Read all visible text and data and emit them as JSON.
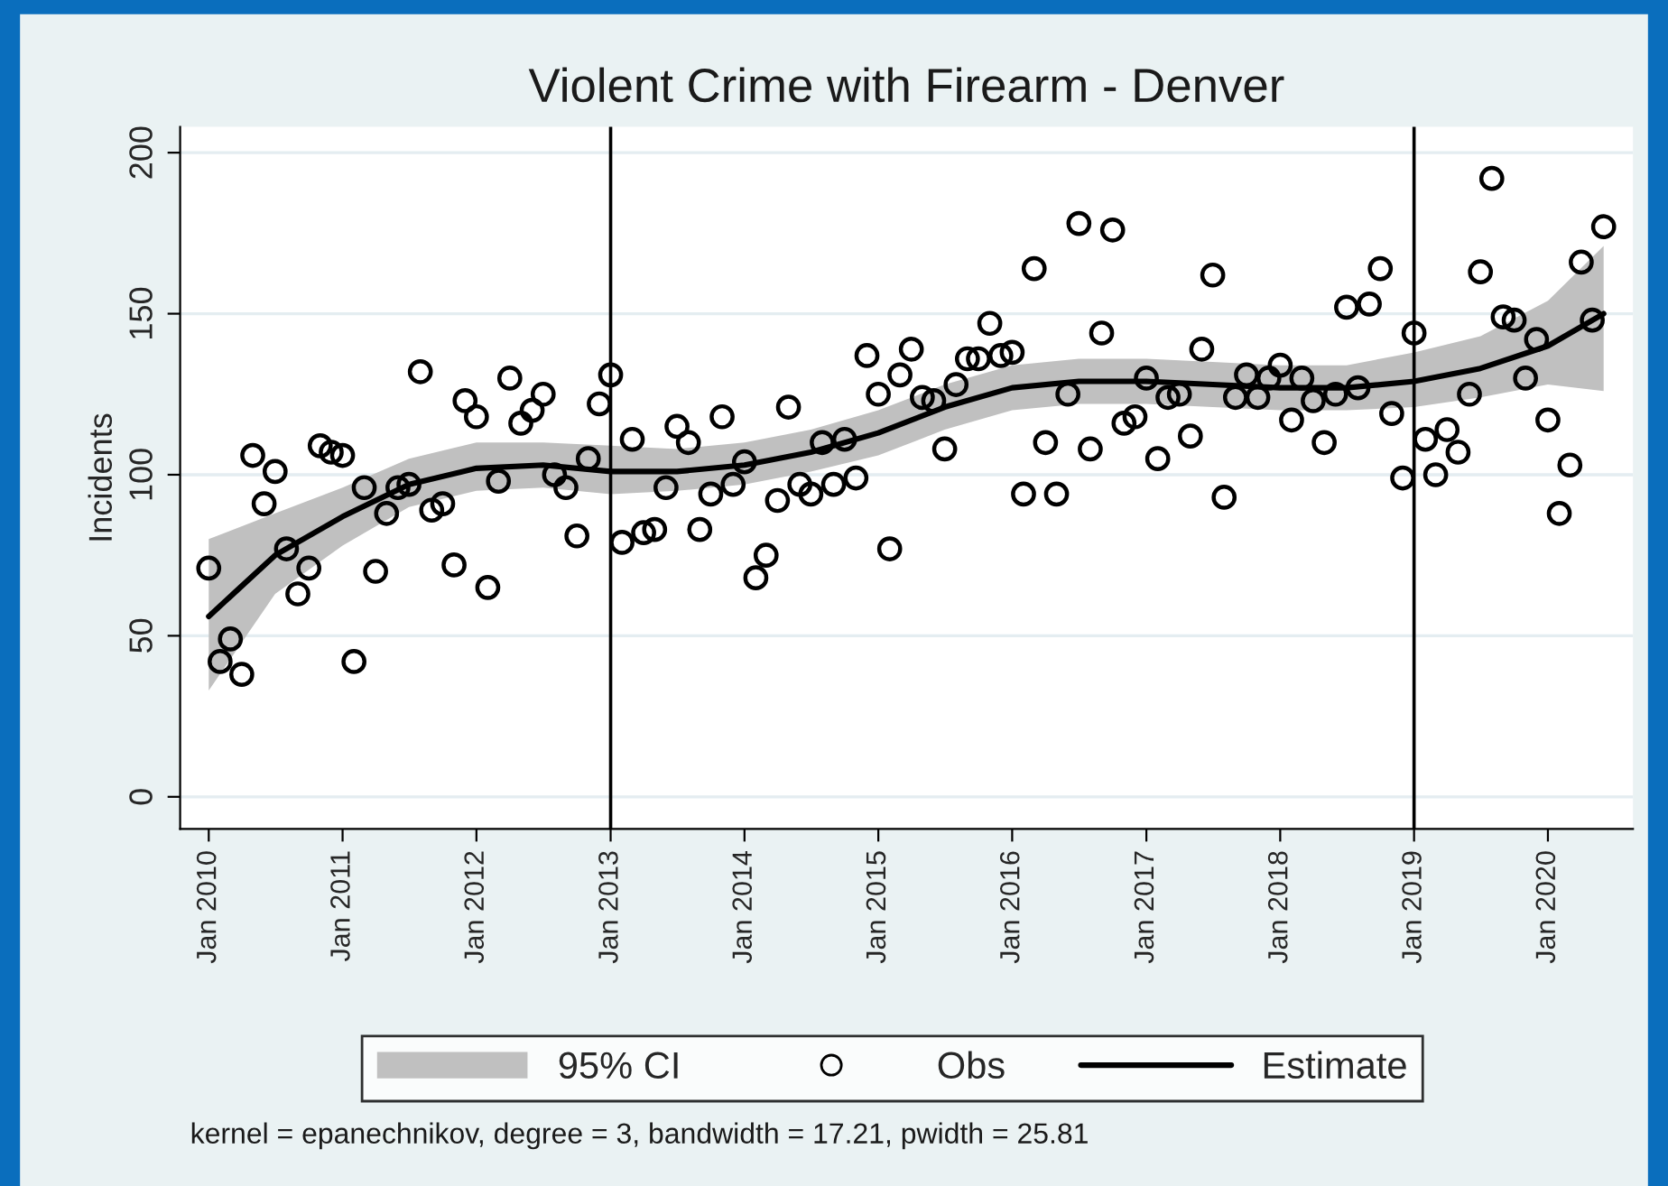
{
  "chart_data": {
    "type": "scatter",
    "title": "Violent Crime with Firearm - Denver",
    "ylabel": "Incidents",
    "x": [
      "2010-01",
      "2010-02",
      "2010-03",
      "2010-04",
      "2010-05",
      "2010-06",
      "2010-07",
      "2010-08",
      "2010-09",
      "2010-10",
      "2010-11",
      "2010-12",
      "2011-01",
      "2011-02",
      "2011-03",
      "2011-04",
      "2011-05",
      "2011-06",
      "2011-07",
      "2011-08",
      "2011-09",
      "2011-10",
      "2011-11",
      "2011-12",
      "2012-01",
      "2012-02",
      "2012-03",
      "2012-04",
      "2012-05",
      "2012-06",
      "2012-07",
      "2012-08",
      "2012-09",
      "2012-10",
      "2012-11",
      "2012-12",
      "2013-01",
      "2013-02",
      "2013-03",
      "2013-04",
      "2013-05",
      "2013-06",
      "2013-07",
      "2013-08",
      "2013-09",
      "2013-10",
      "2013-11",
      "2013-12",
      "2014-01",
      "2014-02",
      "2014-03",
      "2014-04",
      "2014-05",
      "2014-06",
      "2014-07",
      "2014-08",
      "2014-09",
      "2014-10",
      "2014-11",
      "2014-12",
      "2015-01",
      "2015-02",
      "2015-03",
      "2015-04",
      "2015-05",
      "2015-06",
      "2015-07",
      "2015-08",
      "2015-09",
      "2015-10",
      "2015-11",
      "2015-12",
      "2016-01",
      "2016-02",
      "2016-03",
      "2016-04",
      "2016-05",
      "2016-06",
      "2016-07",
      "2016-08",
      "2016-09",
      "2016-10",
      "2016-11",
      "2016-12",
      "2017-01",
      "2017-02",
      "2017-03",
      "2017-04",
      "2017-05",
      "2017-06",
      "2017-07",
      "2017-08",
      "2017-09",
      "2017-10",
      "2017-11",
      "2017-12",
      "2018-01",
      "2018-02",
      "2018-03",
      "2018-04",
      "2018-05",
      "2018-06",
      "2018-07",
      "2018-08",
      "2018-09",
      "2018-10",
      "2018-11",
      "2018-12",
      "2019-01",
      "2019-02",
      "2019-03",
      "2019-04",
      "2019-05",
      "2019-06",
      "2019-07",
      "2019-08",
      "2019-09",
      "2019-10",
      "2019-11",
      "2019-12",
      "2020-01",
      "2020-02",
      "2020-03",
      "2020-04",
      "2020-05",
      "2020-06"
    ],
    "series": [
      {
        "name": "Obs",
        "color": "#000000",
        "marker": "circle",
        "values": [
          71,
          42,
          49,
          38,
          106,
          91,
          101,
          77,
          63,
          71,
          109,
          107,
          106,
          42,
          96,
          70,
          88,
          96,
          97,
          132,
          89,
          91,
          72,
          123,
          118,
          65,
          98,
          130,
          116,
          120,
          125,
          100,
          96,
          81,
          105,
          122,
          131,
          79,
          111,
          82,
          83,
          96,
          115,
          110,
          83,
          94,
          118,
          97,
          104,
          68,
          75,
          92,
          121,
          97,
          94,
          110,
          97,
          111,
          99,
          137,
          125,
          77,
          131,
          139,
          124,
          123,
          108,
          128,
          136,
          136,
          147,
          137,
          138,
          94,
          164,
          110,
          94,
          125,
          178,
          108,
          144,
          176,
          116,
          118,
          130,
          105,
          124,
          125,
          112,
          139,
          162,
          93,
          124,
          131,
          124,
          130,
          134,
          117,
          130,
          123,
          110,
          125,
          152,
          127,
          153,
          164,
          119,
          99,
          144,
          111,
          100,
          114,
          107,
          125,
          163,
          192,
          149,
          148,
          130,
          142,
          117,
          88,
          103,
          166,
          148,
          177
        ]
      },
      {
        "name": "Estimate",
        "type": "line",
        "color": "#000000",
        "line_style": "solid",
        "x": [
          "2010-01",
          "2010-07",
          "2011-01",
          "2011-07",
          "2012-01",
          "2012-07",
          "2013-01",
          "2013-07",
          "2014-01",
          "2014-07",
          "2015-01",
          "2015-07",
          "2016-01",
          "2016-07",
          "2017-01",
          "2017-07",
          "2018-01",
          "2018-07",
          "2019-01",
          "2019-07",
          "2020-01",
          "2020-06"
        ],
        "values": [
          56,
          75,
          87,
          97,
          102,
          103,
          101,
          101,
          103,
          107,
          113,
          121,
          127,
          129,
          129,
          128,
          127,
          127,
          129,
          133,
          140,
          150
        ],
        "lower": [
          33,
          63,
          78,
          90,
          95,
          96,
          94,
          95,
          97,
          101,
          106,
          114,
          120,
          122,
          122,
          121,
          120,
          120,
          121,
          124,
          128,
          126
        ],
        "upper": [
          80,
          88,
          96,
          105,
          110,
          110,
          109,
          108,
          110,
          114,
          120,
          128,
          134,
          136,
          136,
          135,
          134,
          134,
          138,
          143,
          154,
          171
        ]
      }
    ],
    "xlim": [
      "2009-10-15",
      "2020-08-20"
    ],
    "xticks": [
      {
        "value": "2010-01",
        "label": "Jan 2010"
      },
      {
        "value": "2011-01",
        "label": "Jan 2011"
      },
      {
        "value": "2012-01",
        "label": "Jan 2012"
      },
      {
        "value": "2013-01",
        "label": "Jan 2013"
      },
      {
        "value": "2014-01",
        "label": "Jan 2014"
      },
      {
        "value": "2015-01",
        "label": "Jan 2015"
      },
      {
        "value": "2016-01",
        "label": "Jan 2016"
      },
      {
        "value": "2017-01",
        "label": "Jan 2017"
      },
      {
        "value": "2018-01",
        "label": "Jan 2018"
      },
      {
        "value": "2019-01",
        "label": "Jan 2019"
      },
      {
        "value": "2020-01",
        "label": "Jan 2020"
      }
    ],
    "ylim": [
      -10,
      208
    ],
    "yticks": [
      0,
      50,
      100,
      150,
      200
    ],
    "ref_lines": [
      {
        "axis": "x",
        "value": "2013-01",
        "color": "#000000"
      },
      {
        "axis": "x",
        "value": "2019-01",
        "color": "#000000"
      }
    ],
    "grid": "y",
    "legend": "bottom",
    "annotations": [
      "95% CI",
      "kernel = epanechnikov, degree = 3, bandwidth = 17.21, pwidth = 25.81"
    ]
  }
}
